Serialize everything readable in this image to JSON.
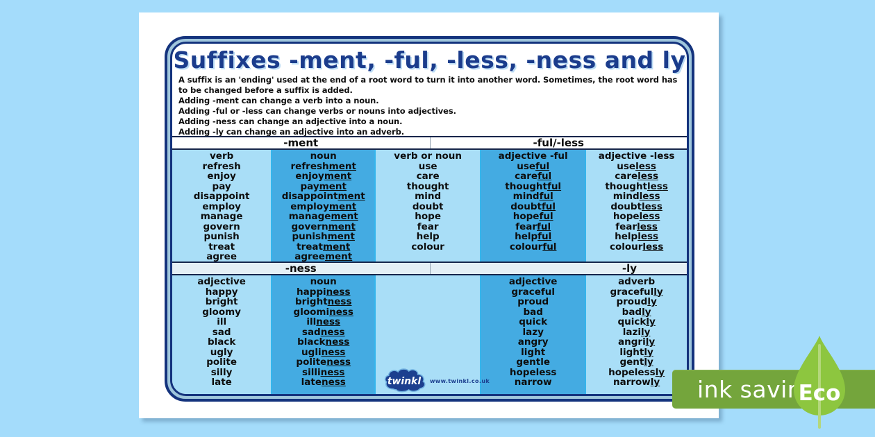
{
  "page": {
    "title": "Suffixes -ment, -ful, -less, -ness and ly",
    "intro_lines": [
      "A suffix is an 'ending' used at the end of a root word to turn it into another word. Sometimes, the root word has to be changed before a suffix is added.",
      "Adding -ment can change a verb into a noun.",
      "Adding -ful or -less can change verbs or nouns into adjectives.",
      "Adding -ness can change an adjective into a noun.",
      "Adding -ly can change an adjective into an adverb."
    ]
  },
  "table": {
    "bands": [
      {
        "left_label": "-ment",
        "right_label": "-ful/-less",
        "columns": [
          {
            "header": "verb",
            "tone": "light",
            "words": [
              "refresh",
              "enjoy",
              "pay",
              "disappoint",
              "employ",
              "manage",
              "govern",
              "punish",
              "treat",
              "agree"
            ]
          },
          {
            "header": "noun",
            "tone": "dark",
            "words": [
              "refresh|ment",
              "enjoy|ment",
              "pay|ment",
              "disappoint|ment",
              "employ|ment",
              "manage|ment",
              "govern|ment",
              "punish|ment",
              "treat|ment",
              "agree|ment"
            ]
          },
          {
            "header": "verb or noun",
            "tone": "light",
            "words": [
              "use",
              "care",
              "thought",
              "mind",
              "doubt",
              "hope",
              "fear",
              "help",
              "colour"
            ]
          },
          {
            "header": "adjective -ful",
            "tone": "dark",
            "words": [
              "use|ful",
              "care|ful",
              "thought|ful",
              "mind|ful",
              "doubt|ful",
              "hope|ful",
              "fear|ful",
              "help|ful",
              "colour|ful"
            ]
          },
          {
            "header": "adjective -less",
            "tone": "light",
            "words": [
              "use|less",
              "care|less",
              "thought|less",
              "mind|less",
              "doubt|less",
              "hope|less",
              "fear|less",
              "help|less",
              "colour|less"
            ]
          }
        ]
      },
      {
        "left_label": "-ness",
        "right_label": "-ly",
        "columns": [
          {
            "header": "adjective",
            "tone": "light",
            "words": [
              "happy",
              "bright",
              "gloomy",
              "ill",
              "sad",
              "black",
              "ugly",
              "polite",
              "silly",
              "late"
            ]
          },
          {
            "header": "noun",
            "tone": "dark",
            "words": [
              "happi|ness",
              "bright|ness",
              "gloomi|ness",
              "ill|ness",
              "sad|ness",
              "black|ness",
              "ugli|ness",
              "polite|ness",
              "silli|ness",
              "late|ness"
            ]
          },
          {
            "header": "",
            "tone": "light",
            "words": []
          },
          {
            "header": "adjective",
            "tone": "dark",
            "words": [
              "graceful",
              "proud",
              "bad",
              "quick",
              "lazy",
              "angry",
              "light",
              "gentle",
              "hopeless",
              "narrow"
            ]
          },
          {
            "header": "adverb",
            "tone": "light",
            "words": [
              "graceful|ly",
              "proud|ly",
              "bad|ly",
              "quick|ly",
              "lazi|ly",
              "angri|ly",
              "light|ly",
              "gent|ly",
              "hopeless|ly",
              "narrow|ly"
            ]
          }
        ]
      }
    ]
  },
  "branding": {
    "logo_text": "twinkl",
    "website": "www.twinkl.co.uk"
  },
  "eco_badge": {
    "label": "ink saving",
    "eco_label": "Eco"
  },
  "colors": {
    "background": "#a4dcfb",
    "light_column": "#a9def7",
    "dark_column": "#44abe2",
    "divider": "#35b5ec",
    "border_navy": "#14337d",
    "title_navy": "#1b3c8c",
    "band2_bg": "#e4eff5",
    "banner_green": "#74a53c",
    "leaf_green": "#8dc63f",
    "logo_navy": "#1c3f8f"
  }
}
